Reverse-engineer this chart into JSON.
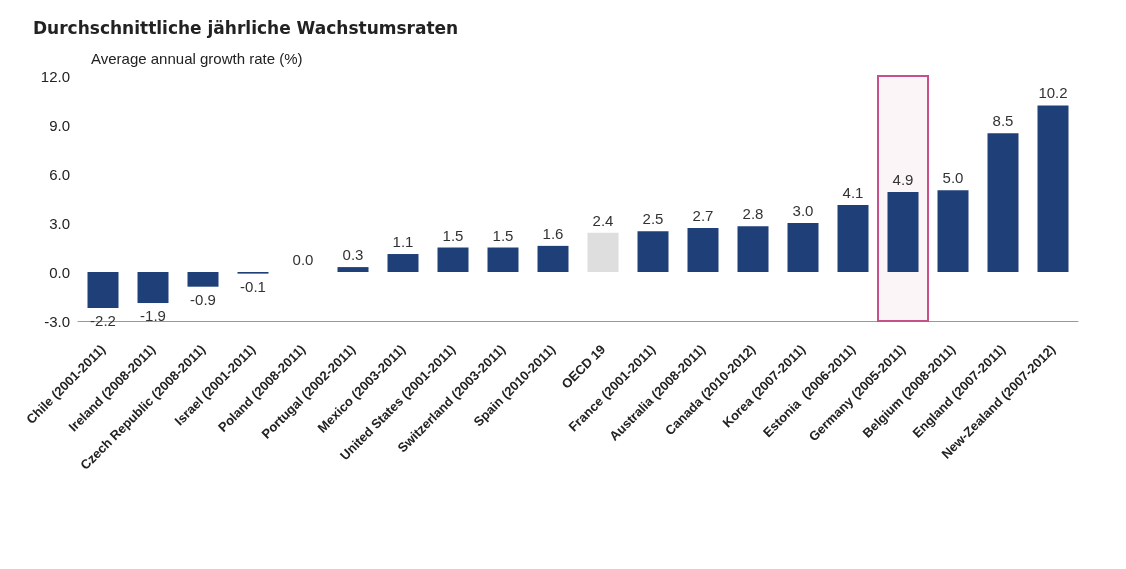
{
  "chart_data": {
    "type": "bar",
    "title": "Durchschnittliche jährliche Wachstumsraten",
    "ylabel": "Average annual growth rate (%)",
    "categories": [
      "Chile (2001-2011)",
      "Ireland (2008-2011)",
      "Czech Republic (2008-2011)",
      "Israel (2001-2011)",
      "Poland (2008-2011)",
      "Portugal (2002-2011)",
      "Mexico (2003-2011)",
      "United States (2001-2011)",
      "Switzerland (2003-2011)",
      "Spain (2010-2011)",
      "OECD 19",
      "France (2001-2011)",
      "Australia (2008-2011)",
      "Canada (2010-2012)",
      "Korea (2007-2011)",
      "Estonia  (2006-2011)",
      "Germany (2005-2011)",
      "Belgium (2008-2011)",
      "England (2007-2011)",
      "New-Zealand (2007-2012)"
    ],
    "values": [
      -2.2,
      -1.9,
      -0.9,
      -0.1,
      0.0,
      0.3,
      1.1,
      1.5,
      1.5,
      1.6,
      2.4,
      2.5,
      2.7,
      2.8,
      3.0,
      4.1,
      4.9,
      5.0,
      8.5,
      10.2
    ],
    "value_labels": [
      "-2.2",
      "-1.9",
      "-0.9",
      "-0.1",
      "0.0",
      "0.3",
      "1.1",
      "1.5",
      "1.5",
      "1.6",
      "2.4",
      "2.5",
      "2.7",
      "2.8",
      "3.0",
      "4.1",
      "4.9",
      "5.0",
      "8.5",
      "10.2"
    ],
    "colors": [
      "#1f3f78",
      "#1f3f78",
      "#1f3f78",
      "#1f3f78",
      "#1f3f78",
      "#1f3f78",
      "#1f3f78",
      "#1f3f78",
      "#1f3f78",
      "#1f3f78",
      "#dedede",
      "#1f3f78",
      "#1f3f78",
      "#1f3f78",
      "#1f3f78",
      "#1f3f78",
      "#1f3f78",
      "#1f3f78",
      "#1f3f78",
      "#1f3f78"
    ],
    "ylim": [
      -3,
      12
    ],
    "yticks": [
      {
        "value": -3,
        "label": "-3.0"
      },
      {
        "value": 0,
        "label": "0.0"
      },
      {
        "value": 3,
        "label": "3.0"
      },
      {
        "value": 6,
        "label": "6.0"
      },
      {
        "value": 9,
        "label": "9.0"
      },
      {
        "value": 12,
        "label": "12.0"
      }
    ],
    "bands": [
      {
        "axis": "x",
        "from": "Germany (2005-2011)",
        "to": "Germany (2005-2011)",
        "color": "#c8508a"
      }
    ],
    "grid": false
  }
}
